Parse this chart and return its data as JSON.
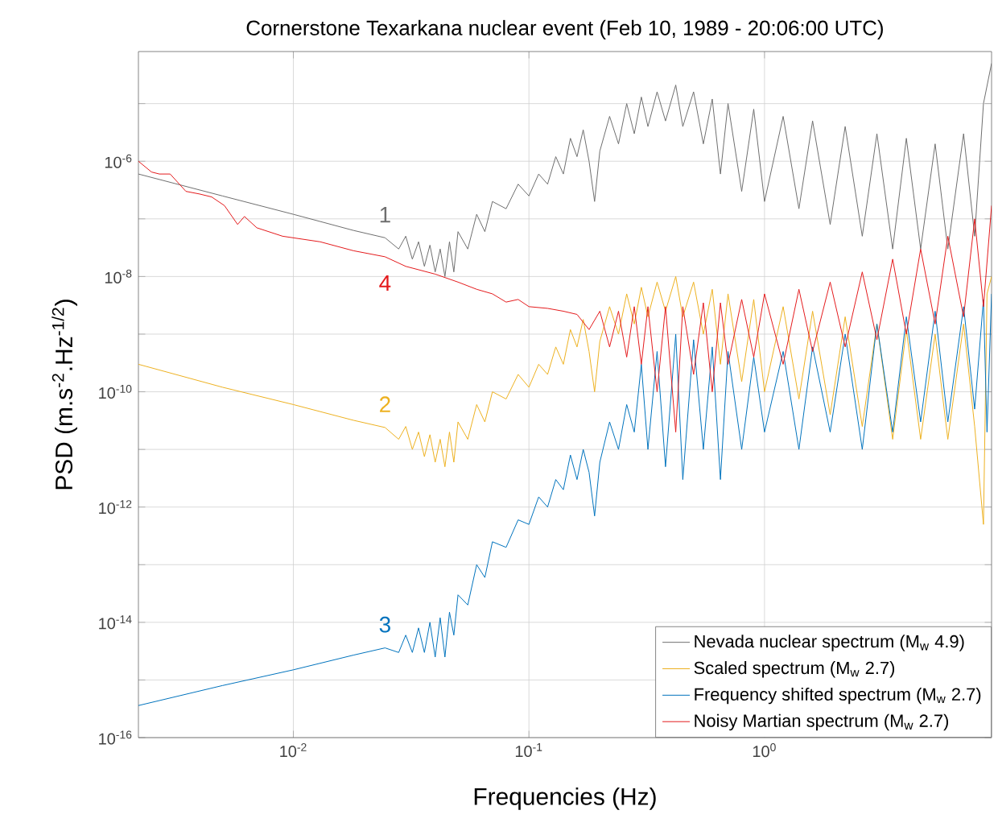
{
  "chart_data": {
    "type": "line",
    "title": "Cornerstone Texarkana nuclear event (Feb 10, 1989 - 20:06:00 UTC)",
    "xlabel": "Frequencies (Hz)",
    "ylabel": "PSD (m.s$^{-2}$.Hz$^{-1/2}$)",
    "log": "xy",
    "grid": true,
    "legend": "bottom right",
    "line_style": "solid",
    "marker": "none",
    "xlim": [
      0.0022,
      9.2
    ],
    "ylim": [
      1e-16,
      8e-05
    ],
    "xticks": [
      {
        "value": 0.01,
        "label": "10$^{-2}$"
      },
      {
        "value": 0.1,
        "label": "10$^{-1}$"
      },
      {
        "value": 1,
        "label": "10$^{0}$"
      }
    ],
    "yticks": [
      {
        "value": 1e-16,
        "label": "10$^{-16}$"
      },
      {
        "value": 1e-15,
        "label": null
      },
      {
        "value": 1e-14,
        "label": "10$^{-14}$"
      },
      {
        "value": 1e-13,
        "label": null
      },
      {
        "value": 1e-12,
        "label": "10$^{-12}$"
      },
      {
        "value": 1e-11,
        "label": null
      },
      {
        "value": 1e-10,
        "label": "10$^{-10}$"
      },
      {
        "value": 1e-09,
        "label": null
      },
      {
        "value": 1e-08,
        "label": "10$^{-8}$"
      },
      {
        "value": 1e-07,
        "label": null
      },
      {
        "value": 1e-06,
        "label": "10$^{-6}$"
      },
      {
        "value": 1e-05,
        "label": null
      }
    ],
    "series": [
      {
        "name": "Nevada nuclear spectrum (M$_{w}$ 4.9)",
        "color": "#6e6e6e",
        "x": [
          0.0022,
          0.005,
          0.01,
          0.018,
          0.0245,
          0.028,
          0.03,
          0.032,
          0.034,
          0.036,
          0.038,
          0.04,
          0.042,
          0.044,
          0.046,
          0.048,
          0.05,
          0.055,
          0.06,
          0.065,
          0.07,
          0.08,
          0.09,
          0.1,
          0.11,
          0.12,
          0.13,
          0.14,
          0.15,
          0.16,
          0.17,
          0.18,
          0.19,
          0.2,
          0.22,
          0.24,
          0.26,
          0.28,
          0.3,
          0.32,
          0.35,
          0.38,
          0.42,
          0.45,
          0.5,
          0.55,
          0.6,
          0.65,
          0.7,
          0.8,
          0.9,
          1.0,
          1.2,
          1.4,
          1.6,
          1.9,
          2.2,
          2.6,
          3.0,
          3.5,
          4.0,
          4.6,
          5.3,
          6,
          7,
          7.8,
          8.5,
          9.2
        ],
        "values": [
          6e-07,
          2.5e-07,
          1.2e-07,
          6.3e-08,
          4.7e-08,
          3e-08,
          5e-08,
          2e-08,
          4e-08,
          1.5e-08,
          3.5e-08,
          1.2e-08,
          3e-08,
          1e-08,
          4e-08,
          1.2e-08,
          6e-08,
          3e-08,
          1.2e-07,
          6e-08,
          2e-07,
          1.5e-07,
          4e-07,
          2.5e-07,
          6e-07,
          4e-07,
          1.2e-06,
          6e-07,
          2.5e-06,
          1.2e-06,
          3.5e-06,
          1e-06,
          2e-07,
          1.5e-06,
          6e-06,
          2e-06,
          1e-05,
          3e-06,
          1.3e-05,
          4e-06,
          1.6e-05,
          5e-06,
          2.1e-05,
          4e-06,
          1.6e-05,
          2e-06,
          1.2e-05,
          6e-07,
          1e-05,
          3e-07,
          8e-06,
          2e-07,
          6e-06,
          1.5e-07,
          5e-06,
          8e-08,
          4e-06,
          5e-08,
          3e-06,
          3e-08,
          2.5e-06,
          3e-08,
          2e-06,
          3e-08,
          3e-06,
          5e-08,
          1e-05,
          5e-05
        ]
      },
      {
        "name": "Scaled spectrum (M$_{w}$ 2.7)",
        "color": "#edb120",
        "x": [
          0.0022,
          0.005,
          0.01,
          0.018,
          0.0245,
          0.028,
          0.03,
          0.032,
          0.034,
          0.036,
          0.038,
          0.04,
          0.042,
          0.044,
          0.046,
          0.048,
          0.05,
          0.055,
          0.06,
          0.065,
          0.07,
          0.08,
          0.09,
          0.1,
          0.11,
          0.12,
          0.13,
          0.14,
          0.15,
          0.16,
          0.17,
          0.18,
          0.19,
          0.2,
          0.22,
          0.24,
          0.26,
          0.28,
          0.3,
          0.32,
          0.35,
          0.38,
          0.42,
          0.45,
          0.5,
          0.55,
          0.6,
          0.65,
          0.7,
          0.8,
          0.9,
          1.0,
          1.2,
          1.4,
          1.6,
          1.9,
          2.2,
          2.6,
          3.0,
          3.5,
          4.0,
          4.6,
          5.3,
          6,
          7,
          7.8,
          8.5,
          8.8,
          9.2
        ],
        "values": [
          3e-10,
          1.2e-10,
          6e-11,
          3.2e-11,
          2.4e-11,
          1.5e-11,
          2.5e-11,
          1e-11,
          2e-11,
          7.5e-12,
          1.8e-11,
          6e-12,
          1.5e-11,
          5e-12,
          2e-11,
          6e-12,
          3e-11,
          1.5e-11,
          6e-11,
          3e-11,
          1e-10,
          7.5e-11,
          2e-10,
          1.2e-10,
          3e-10,
          2e-10,
          6e-10,
          3e-10,
          1.2e-09,
          6e-10,
          1.8e-09,
          5e-10,
          1e-10,
          7.5e-10,
          3e-09,
          1e-09,
          5e-09,
          1.5e-09,
          6.5e-09,
          2e-09,
          8e-09,
          2.5e-09,
          1e-08,
          2e-09,
          8e-09,
          1e-09,
          6e-09,
          3e-10,
          5e-09,
          1.5e-10,
          4e-09,
          1e-10,
          3e-09,
          7.5e-11,
          2.5e-09,
          4e-11,
          2e-09,
          2.5e-11,
          1.5e-09,
          1.5e-11,
          1.2e-09,
          1.5e-11,
          1e-09,
          1.5e-11,
          1.5e-09,
          2.5e-11,
          5e-13,
          5e-09,
          1e-08
        ]
      },
      {
        "name": "Frequency shifted spectrum (M$_{w}$ 2.7)",
        "color": "#0072bd",
        "x": [
          0.0022,
          0.005,
          0.01,
          0.018,
          0.0245,
          0.028,
          0.03,
          0.032,
          0.034,
          0.036,
          0.038,
          0.04,
          0.042,
          0.044,
          0.046,
          0.048,
          0.05,
          0.055,
          0.06,
          0.065,
          0.07,
          0.08,
          0.09,
          0.1,
          0.11,
          0.12,
          0.13,
          0.14,
          0.15,
          0.16,
          0.17,
          0.18,
          0.19,
          0.2,
          0.22,
          0.24,
          0.26,
          0.28,
          0.3,
          0.32,
          0.35,
          0.38,
          0.42,
          0.45,
          0.5,
          0.55,
          0.6,
          0.65,
          0.7,
          0.8,
          0.9,
          1.0,
          1.2,
          1.4,
          1.6,
          1.9,
          2.2,
          2.6,
          3.0,
          3.5,
          4.0,
          4.6,
          5.3,
          6,
          7,
          7.8,
          8.5,
          8.8,
          9.2
        ],
        "values": [
          3.6e-16,
          8e-16,
          1.5e-15,
          2.7e-15,
          3.6e-15,
          3e-15,
          6e-15,
          3e-15,
          8e-15,
          3e-15,
          1e-14,
          2.5e-15,
          1.2e-14,
          2.5e-15,
          1.5e-14,
          6e-15,
          3e-14,
          2e-14,
          1e-13,
          6e-14,
          2.5e-13,
          2e-13,
          6e-13,
          5e-13,
          1.5e-12,
          1e-12,
          3e-12,
          2e-12,
          8e-12,
          3e-12,
          1e-11,
          4e-12,
          7e-13,
          6e-12,
          3e-11,
          1e-11,
          6e-11,
          2e-11,
          3e-10,
          1e-11,
          5e-10,
          5e-12,
          1e-09,
          3e-12,
          8e-10,
          1e-11,
          6e-10,
          3e-12,
          5e-10,
          1e-11,
          4e-10,
          2e-11,
          5e-10,
          1e-11,
          6e-10,
          2e-11,
          1e-09,
          1e-11,
          1.5e-09,
          2e-11,
          2e-09,
          3e-11,
          2.5e-09,
          3e-11,
          3e-09,
          5e-11,
          4e-09,
          2e-11,
          5e-09
        ]
      },
      {
        "name": "Noisy Martian spectrum (M$_{w}$ 2.7)",
        "color": "#e41a1c",
        "x": [
          0.0022,
          0.0025,
          0.0027,
          0.003,
          0.0035,
          0.004,
          0.0045,
          0.0051,
          0.0058,
          0.0062,
          0.007,
          0.009,
          0.013,
          0.018,
          0.0245,
          0.03,
          0.04,
          0.05,
          0.06,
          0.07,
          0.08,
          0.09,
          0.1,
          0.12,
          0.14,
          0.16,
          0.18,
          0.2,
          0.22,
          0.24,
          0.26,
          0.28,
          0.3,
          0.32,
          0.35,
          0.38,
          0.42,
          0.45,
          0.5,
          0.55,
          0.6,
          0.65,
          0.7,
          0.8,
          0.9,
          1.0,
          1.2,
          1.4,
          1.6,
          1.9,
          2.2,
          2.6,
          3.0,
          3.5,
          4.0,
          4.6,
          5.3,
          6,
          7,
          7.8,
          8.5,
          9.2
        ],
        "values": [
          1e-06,
          6.5e-07,
          6e-07,
          6e-07,
          3e-07,
          2.7e-07,
          2.4e-07,
          1.7e-07,
          8e-08,
          1.1e-07,
          7e-08,
          5e-08,
          4e-08,
          2.8e-08,
          2.2e-08,
          1.5e-08,
          1.1e-08,
          8e-09,
          6e-09,
          5e-09,
          3.6e-09,
          4e-09,
          3e-09,
          2.8e-09,
          2.5e-09,
          2.2e-09,
          1.2e-09,
          2.5e-09,
          6e-10,
          2.5e-09,
          4e-10,
          3e-09,
          3e-10,
          3e-09,
          1e-10,
          3e-09,
          2e-11,
          3e-09,
          2e-10,
          3.5e-09,
          1e-10,
          3.5e-09,
          3e-10,
          4e-09,
          4e-10,
          5e-09,
          3e-10,
          6e-09,
          5e-10,
          8e-09,
          6e-10,
          1.2e-08,
          8e-10,
          2e-08,
          1e-09,
          3e-08,
          1.5e-09,
          5e-08,
          2e-09,
          1e-07,
          3e-09,
          1.7e-07
        ]
      }
    ],
    "annotations": [
      "1",
      "2",
      "3",
      "4"
    ]
  }
}
